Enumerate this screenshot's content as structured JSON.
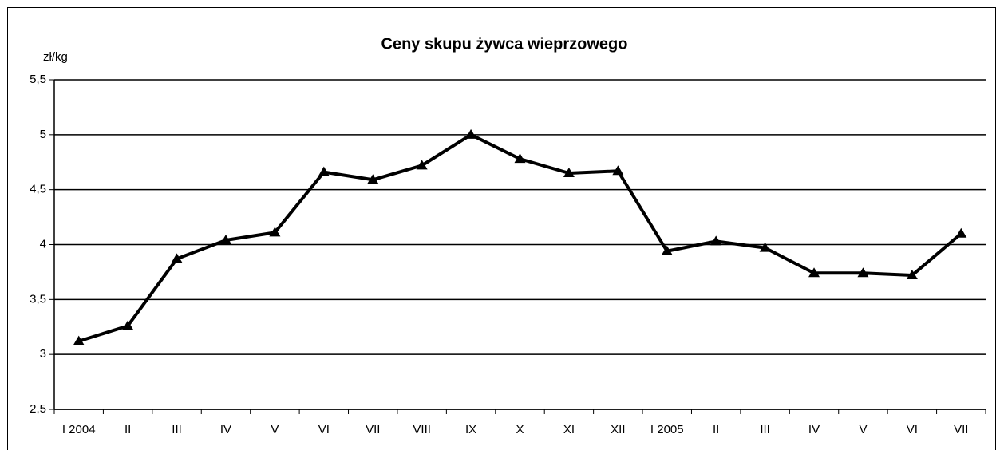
{
  "chart_data": {
    "type": "line",
    "title": "Ceny skupu żywca wieprzowego",
    "y_label": "zł/kg",
    "categories": [
      "I 2004",
      "II",
      "III",
      "IV",
      "V",
      "VI",
      "VII",
      "VIII",
      "IX",
      "X",
      "XI",
      "XII",
      "I 2005",
      "II",
      "III",
      "IV",
      "V",
      "VI",
      "VII"
    ],
    "series": [
      {
        "name": "Ceny skupu",
        "color": "#000000",
        "values": [
          3.12,
          3.26,
          3.87,
          4.04,
          4.11,
          4.66,
          4.59,
          4.72,
          5.0,
          4.78,
          4.65,
          4.67,
          3.94,
          4.03,
          3.97,
          3.74,
          3.74,
          3.72,
          4.1
        ]
      }
    ],
    "ylim": [
      2.5,
      5.5
    ],
    "yticks": [
      {
        "value": 2.5,
        "label": "2,5"
      },
      3,
      {
        "value": 3.5,
        "label": "3,5"
      },
      4,
      {
        "value": 4.5,
        "label": "4,5"
      },
      5,
      {
        "value": 5.5,
        "label": "5,5"
      }
    ],
    "grid": true,
    "marker": "triangle"
  }
}
